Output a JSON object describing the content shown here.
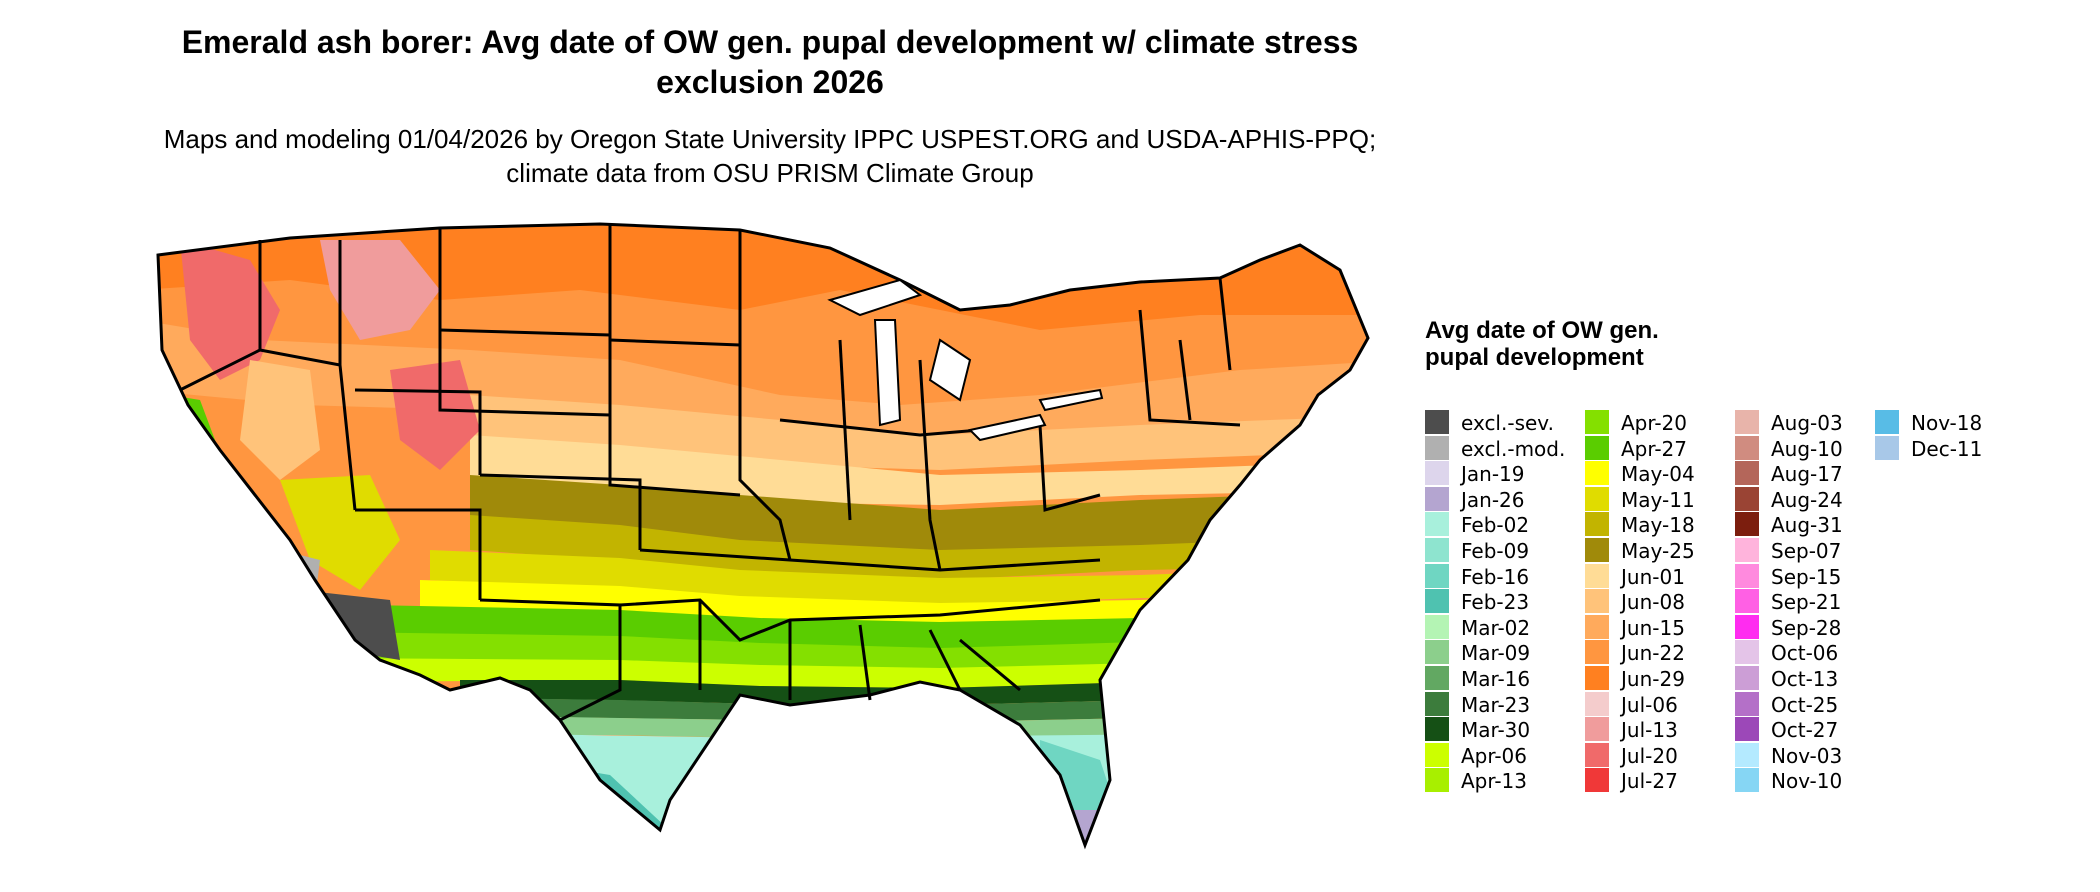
{
  "title": "Emerald ash borer: Avg date of OW gen. pupal development w/ climate stress exclusion 2026",
  "subtitle": "Maps and modeling 01/04/2026 by Oregon State University IPPC USPEST.ORG and USDA-APHIS-PPQ; climate data from OSU PRISM Climate Group",
  "legend": {
    "title": "Avg date of OW gen. pupal development",
    "columns": [
      [
        {
          "label": "excl.-sev.",
          "color": "#4d4d4d"
        },
        {
          "label": "excl.-mod.",
          "color": "#b0b0b0"
        },
        {
          "label": "Jan-19",
          "color": "#ddd5ec"
        },
        {
          "label": "Jan-26",
          "color": "#b4a5d0"
        },
        {
          "label": "Feb-02",
          "color": "#a8f0dc"
        },
        {
          "label": "Feb-09",
          "color": "#8ee4cf"
        },
        {
          "label": "Feb-16",
          "color": "#6fd6c2"
        },
        {
          "label": "Feb-23",
          "color": "#4fc2b0"
        },
        {
          "label": "Mar-02",
          "color": "#b4f4b4"
        },
        {
          "label": "Mar-09",
          "color": "#8ccf8c"
        },
        {
          "label": "Mar-16",
          "color": "#62a862"
        },
        {
          "label": "Mar-23",
          "color": "#3c7c3c"
        },
        {
          "label": "Mar-30",
          "color": "#155015"
        },
        {
          "label": "Apr-06",
          "color": "#ccff00"
        },
        {
          "label": "Apr-13",
          "color": "#a8ef00"
        }
      ],
      [
        {
          "label": "Apr-20",
          "color": "#84e000"
        },
        {
          "label": "Apr-27",
          "color": "#5acd00"
        },
        {
          "label": "May-04",
          "color": "#ffff00"
        },
        {
          "label": "May-11",
          "color": "#e0dc00"
        },
        {
          "label": "May-18",
          "color": "#c2b400"
        },
        {
          "label": "May-25",
          "color": "#a08a0a"
        },
        {
          "label": "Jun-01",
          "color": "#ffdc96"
        },
        {
          "label": "Jun-08",
          "color": "#ffc37a"
        },
        {
          "label": "Jun-15",
          "color": "#ffaa5c"
        },
        {
          "label": "Jun-22",
          "color": "#ff9640"
        },
        {
          "label": "Jun-29",
          "color": "#ff8020"
        },
        {
          "label": "Jul-06",
          "color": "#f4cccc"
        },
        {
          "label": "Jul-13",
          "color": "#f09c9c"
        },
        {
          "label": "Jul-20",
          "color": "#f06a6a"
        },
        {
          "label": "Jul-27",
          "color": "#f03838"
        }
      ],
      [
        {
          "label": "Aug-03",
          "color": "#e8b4aa"
        },
        {
          "label": "Aug-10",
          "color": "#d08c80"
        },
        {
          "label": "Aug-17",
          "color": "#b4665a"
        },
        {
          "label": "Aug-24",
          "color": "#9a4434"
        },
        {
          "label": "Aug-31",
          "color": "#7c1e0e"
        },
        {
          "label": "Sep-07",
          "color": "#ffb4dc"
        },
        {
          "label": "Sep-15",
          "color": "#ff8ade"
        },
        {
          "label": "Sep-21",
          "color": "#ff60e4"
        },
        {
          "label": "Sep-28",
          "color": "#ff2cf0"
        },
        {
          "label": "Oct-06",
          "color": "#e4c4e8"
        },
        {
          "label": "Oct-13",
          "color": "#cc9ed6"
        },
        {
          "label": "Oct-25",
          "color": "#b470c8"
        },
        {
          "label": "Oct-27",
          "color": "#9c48b8"
        },
        {
          "label": "Nov-03",
          "color": "#b4eaff"
        },
        {
          "label": "Nov-10",
          "color": "#86d6f4"
        }
      ],
      [
        {
          "label": "Nov-18",
          "color": "#58bce6"
        },
        {
          "label": "Dec-11",
          "color": "#a8c8e8"
        }
      ]
    ]
  }
}
